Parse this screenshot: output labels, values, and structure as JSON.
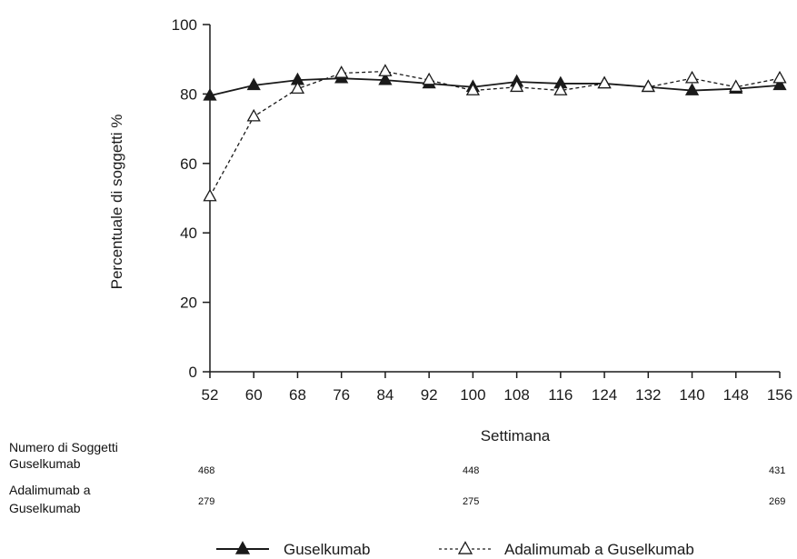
{
  "chart_data": {
    "type": "line",
    "title": "",
    "xlabel": "Settimana",
    "ylabel": "Percentuale di soggetti %",
    "x": [
      52,
      60,
      68,
      76,
      84,
      92,
      100,
      108,
      116,
      124,
      132,
      140,
      148,
      156
    ],
    "xlim": [
      52,
      156
    ],
    "ylim": [
      0,
      100
    ],
    "yticks": [
      0,
      20,
      40,
      60,
      80,
      100
    ],
    "grid": false,
    "legend_position": "bottom",
    "series": [
      {
        "name": "Guselkumab",
        "style": "solid",
        "marker": "filled-triangle",
        "values": [
          79.5,
          82.5,
          84,
          84.5,
          84,
          83,
          82,
          83.5,
          83,
          83,
          82,
          81,
          81.5,
          82.5
        ]
      },
      {
        "name": "Adalimumab a Guselkumab",
        "style": "dashed",
        "marker": "open-triangle",
        "values": [
          50.5,
          73.5,
          81.5,
          86,
          86.5,
          84,
          81,
          82,
          81,
          83,
          82,
          84.5,
          82,
          84.5
        ]
      }
    ]
  },
  "risk_table": {
    "header": "Numero di Soggetti",
    "rows": [
      {
        "label_lines": [
          "Guselkumab"
        ],
        "values": [
          "468",
          "448",
          "431"
        ]
      },
      {
        "label_lines": [
          "Adalimumab a",
          "Guselkumab"
        ],
        "values": [
          "279",
          "275",
          "269"
        ]
      }
    ]
  },
  "legend": {
    "items": [
      {
        "label": "Guselkumab",
        "symbol": "—▲—"
      },
      {
        "label": "Adalimumab a Guselkumab",
        "symbol": "--△--"
      }
    ]
  },
  "colors": {
    "line": "#1a1a1a",
    "background": "#ffffff"
  }
}
